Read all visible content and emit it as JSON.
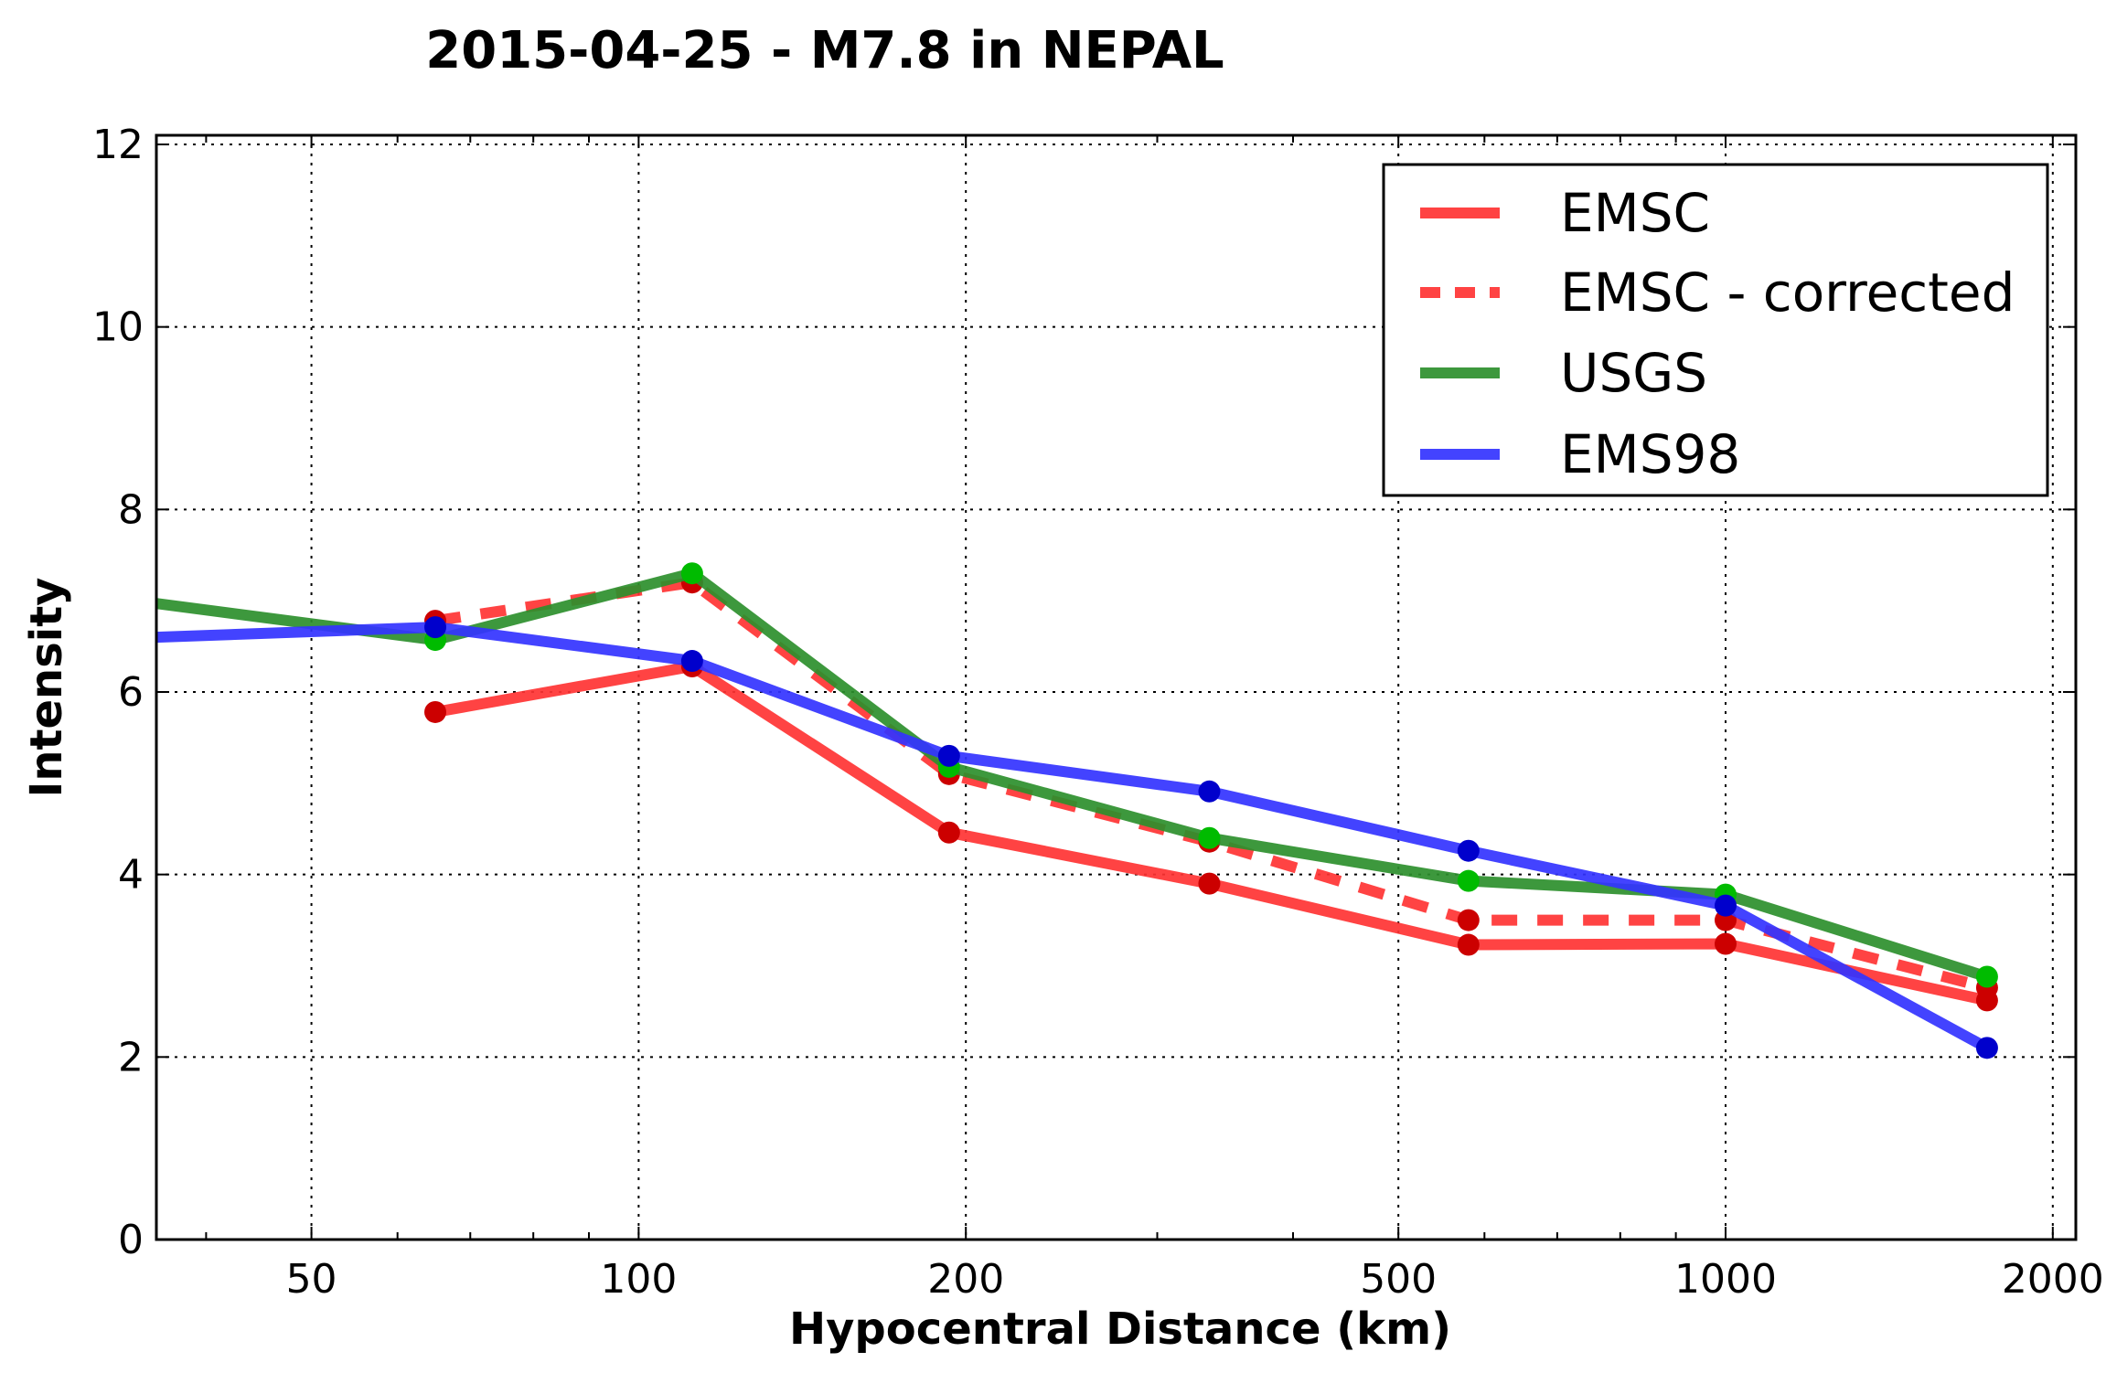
{
  "chart_data": {
    "type": "line",
    "title": "2015-04-25 - M7.8 in NEPAL",
    "xlabel": "Hypocentral Distance (km)",
    "ylabel": "Intensity",
    "xscale": "log",
    "xlim": [
      36,
      2100
    ],
    "ylim": [
      0,
      12.1
    ],
    "xticks": [
      50,
      100,
      200,
      500,
      1000,
      2000
    ],
    "xtick_labels": [
      "50",
      "100",
      "200",
      "500",
      "1000",
      "2000"
    ],
    "yticks": [
      0,
      2,
      4,
      6,
      8,
      10,
      12
    ],
    "ytick_labels": [
      "0",
      "2",
      "4",
      "6",
      "8",
      "10",
      "12"
    ],
    "grid": true,
    "legend_position": "top-right",
    "series": [
      {
        "name": "EMSC",
        "color": "#ff3333",
        "marker_color": "#cc0000",
        "style": "solid",
        "x": [
          65,
          112,
          193,
          335,
          580,
          1000,
          1740
        ],
        "y": [
          5.78,
          6.28,
          4.46,
          3.9,
          3.23,
          3.24,
          2.62
        ]
      },
      {
        "name": "EMSC - corrected",
        "color": "#ff3333",
        "marker_color": "#cc0000",
        "style": "dashed",
        "x": [
          65,
          112,
          193,
          335,
          580,
          1000,
          1740
        ],
        "y": [
          6.78,
          7.2,
          5.1,
          4.36,
          3.5,
          3.5,
          2.76
        ]
      },
      {
        "name": "USGS",
        "color": "#2d8f2d",
        "marker_color": "#00bb00",
        "style": "solid",
        "x": [
          36,
          65,
          112,
          193,
          335,
          580,
          1000,
          1740
        ],
        "y": [
          6.97,
          6.57,
          7.3,
          5.18,
          4.4,
          3.93,
          3.78,
          2.88
        ],
        "markers_from_index": 1
      },
      {
        "name": "EMS98",
        "color": "#3333ff",
        "marker_color": "#0000cc",
        "style": "solid",
        "x": [
          36,
          65,
          112,
          193,
          335,
          580,
          1000,
          1740
        ],
        "y": [
          6.6,
          6.71,
          6.34,
          5.3,
          4.91,
          4.26,
          3.66,
          2.1
        ],
        "markers_from_index": 1
      }
    ]
  }
}
